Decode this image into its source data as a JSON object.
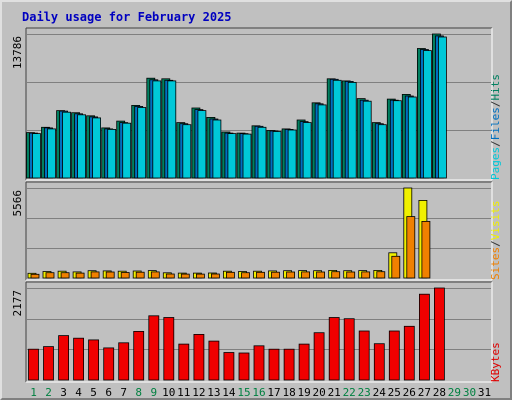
{
  "chart_data": {
    "type": "bar",
    "title": "Daily usage for February 2025",
    "days": [
      "1",
      "2",
      "3",
      "4",
      "5",
      "6",
      "7",
      "8",
      "9",
      "10",
      "11",
      "12",
      "13",
      "14",
      "15",
      "16",
      "17",
      "18",
      "19",
      "20",
      "21",
      "22",
      "23",
      "24",
      "25",
      "26",
      "27",
      "28",
      "29",
      "30",
      "31"
    ],
    "weekend_days": [
      "1",
      "2",
      "8",
      "9",
      "15",
      "16",
      "22",
      "23",
      "29",
      "30"
    ],
    "panels": [
      {
        "id": "hits",
        "max_label": "13786",
        "ymax": 13786,
        "label_parts": [
          "Pages",
          "/",
          "Files",
          "/",
          "Hits"
        ],
        "label_colors": [
          "#00c8d8",
          "#333333",
          "#0070c0",
          "#333333",
          "#008060"
        ],
        "series": [
          {
            "name": "Hits",
            "color": "#008060",
            "values": [
              4350,
              4850,
              6450,
              6250,
              5950,
              4800,
              5450,
              6950,
              9550,
              9500,
              5300,
              6700,
              5800,
              4400,
              4300,
              5000,
              4550,
              4700,
              5550,
              7200,
              9500,
              9300,
              7600,
              5300,
              7550,
              8000,
              12400,
              13786,
              0,
              0,
              0
            ]
          },
          {
            "name": "Files",
            "color": "#0070c0",
            "values": [
              4300,
              4800,
              6400,
              6150,
              5850,
              4700,
              5300,
              6850,
              9400,
              9350,
              5200,
              6550,
              5650,
              4300,
              4250,
              4950,
              4500,
              4650,
              5400,
              7100,
              9450,
              9250,
              7450,
              5200,
              7450,
              7850,
              12300,
              13600,
              0,
              0,
              0
            ]
          },
          {
            "name": "Pages",
            "color": "#00c8d8",
            "values": [
              4250,
              4700,
              6300,
              6050,
              5750,
              4650,
              5250,
              6750,
              9300,
              9300,
              5100,
              6450,
              5550,
              4250,
              4200,
              4850,
              4450,
              4600,
              5300,
              7000,
              9350,
              9150,
              7350,
              5100,
              7400,
              7750,
              12200,
              13500,
              0,
              0,
              0
            ]
          }
        ]
      },
      {
        "id": "visits",
        "max_label": "5566",
        "ymax": 5566,
        "label_parts": [
          "Sites",
          "/",
          "Visits"
        ],
        "label_colors": [
          "#f08000",
          "#333333",
          "#f0f000"
        ],
        "series": [
          {
            "name": "Visits",
            "color": "#f0f000",
            "values": [
              290,
              400,
              420,
              380,
              450,
              440,
              420,
              430,
              460,
              320,
              300,
              300,
              310,
              420,
              400,
              420,
              440,
              450,
              460,
              450,
              470,
              450,
              460,
              470,
              1560,
              5566,
              4800,
              0,
              0,
              0,
              0
            ]
          },
          {
            "name": "Sites",
            "color": "#f08000",
            "values": [
              230,
              330,
              330,
              300,
              380,
              370,
              340,
              360,
              380,
              250,
              240,
              240,
              250,
              350,
              330,
              350,
              360,
              370,
              380,
              370,
              390,
              370,
              380,
              390,
              1340,
              3800,
              3500,
              0,
              0,
              0,
              0
            ]
          }
        ]
      },
      {
        "id": "kbytes",
        "max_label": "2177",
        "ymax": 2177,
        "label_parts": [
          "KBytes"
        ],
        "label_colors": [
          "#e00000"
        ],
        "series": [
          {
            "name": "KBytes",
            "color": "#f00000",
            "values": [
              730,
              790,
              1050,
              990,
              950,
              760,
              880,
              1150,
              1520,
              1480,
              850,
              1080,
              920,
              650,
              640,
              810,
              730,
              730,
              850,
              1120,
              1480,
              1450,
              1160,
              860,
              1160,
              1270,
              2030,
              2177,
              0,
              0,
              0
            ]
          }
        ]
      }
    ],
    "colors": {
      "background": "#c0c0c0",
      "grid": "#808080",
      "title": "#0000c0",
      "axis_text": "#000000",
      "weekend_text": "#008040"
    }
  }
}
